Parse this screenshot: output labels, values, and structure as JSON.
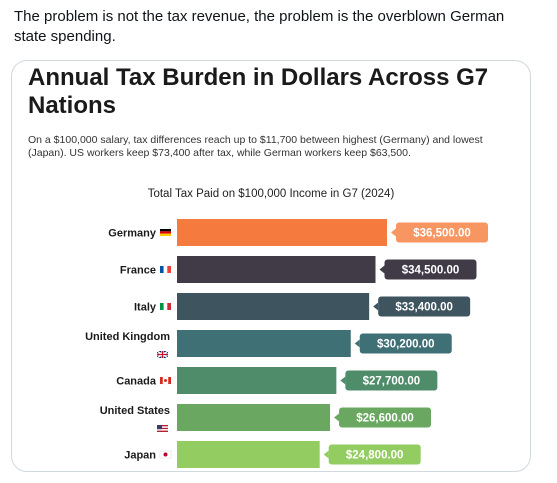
{
  "post": {
    "text": "The problem is not the tax revenue, the problem is the overblown German state spending."
  },
  "chart_data": {
    "type": "bar",
    "orientation": "horizontal",
    "title": "Annual Tax Burden in Dollars Across G7 Nations",
    "subtitle": "On a $100,000 salary, tax differences reach up to $11,700 between highest (Germany) and lowest (Japan). US workers keep $73,400 after tax, while German workers keep $63,500.",
    "axis_title": "Total Tax Paid on $100,000 Income in G7 (2024)",
    "categories": [
      "Germany",
      "France",
      "Italy",
      "United Kingdom",
      "Canada",
      "United States",
      "Japan"
    ],
    "values": [
      36500,
      34500,
      33400,
      30200,
      27700,
      26600,
      24800
    ],
    "value_labels": [
      "$36,500.00",
      "$34,500.00",
      "$33,400.00",
      "$30,200.00",
      "$27,700.00",
      "$26,600.00",
      "$24,800.00"
    ],
    "flags": [
      "de-flag-icon",
      "fr-flag-icon",
      "it-flag-icon",
      "gb-flag-icon",
      "ca-flag-icon",
      "us-flag-icon",
      "jp-flag-icon"
    ],
    "bar_colors": [
      "#f47a3d",
      "#413b48",
      "#3e5560",
      "#3f7075",
      "#4f8d6a",
      "#6aa861",
      "#93cc60"
    ],
    "label_colors": [
      "#f79661",
      "#413b48",
      "#3e5560",
      "#3f7075",
      "#4f8d6a",
      "#6aa861",
      "#93cc60"
    ],
    "xlim": [
      0,
      36500
    ],
    "grid": false,
    "legend": "none"
  }
}
